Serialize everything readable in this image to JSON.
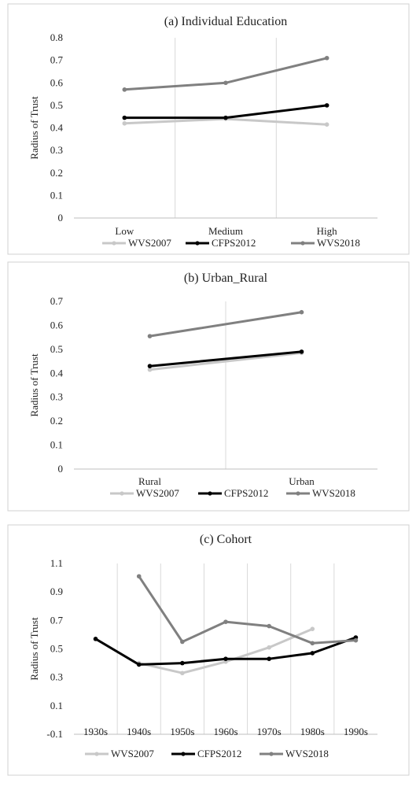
{
  "chart_data": [
    {
      "type": "line",
      "title": "(a) Individual Education",
      "ylabel": "Radius of Trust",
      "xlabel": "",
      "categories": [
        "Low",
        "Medium",
        "High"
      ],
      "ylim": [
        0,
        0.8
      ],
      "yticks": [
        0,
        0.1,
        0.2,
        0.3,
        0.4,
        0.5,
        0.6,
        0.7,
        0.8
      ],
      "ytick_labels": [
        "0",
        "0.1",
        "0.2",
        "0.3",
        "0.4",
        "0.5",
        "0.6",
        "0.7",
        "0.8"
      ],
      "grid": "vertical",
      "legend": "bottom",
      "series": [
        {
          "name": "WVS2007",
          "color": "#c8c8c8",
          "values": [
            0.42,
            0.44,
            0.415
          ]
        },
        {
          "name": "CFPS2012",
          "color": "#000000",
          "values": [
            0.445,
            0.445,
            0.5
          ]
        },
        {
          "name": "WVS2018",
          "color": "#808080",
          "values": [
            0.57,
            0.6,
            0.71
          ]
        }
      ]
    },
    {
      "type": "line",
      "title": "(b) Urban_Rural",
      "ylabel": "Radius of Trust",
      "xlabel": "",
      "categories": [
        "Rural",
        "Urban"
      ],
      "ylim": [
        0,
        0.7
      ],
      "yticks": [
        0,
        0.1,
        0.2,
        0.3,
        0.4,
        0.5,
        0.6,
        0.7
      ],
      "ytick_labels": [
        "0",
        "0.1",
        "0.2",
        "0.3",
        "0.4",
        "0.5",
        "0.6",
        "0.7"
      ],
      "grid": "vertical",
      "legend": "bottom",
      "series": [
        {
          "name": "WVS2007",
          "color": "#c8c8c8",
          "values": [
            0.415,
            0.485
          ]
        },
        {
          "name": "CFPS2012",
          "color": "#000000",
          "values": [
            0.43,
            0.49
          ]
        },
        {
          "name": "WVS2018",
          "color": "#808080",
          "values": [
            0.555,
            0.655
          ]
        }
      ]
    },
    {
      "type": "line",
      "title": "(c) Cohort",
      "ylabel": "Radius of Trust",
      "xlabel": "",
      "categories": [
        "1930s",
        "1940s",
        "1950s",
        "1960s",
        "1970s",
        "1980s",
        "1990s"
      ],
      "ylim": [
        -0.1,
        1.1
      ],
      "yticks": [
        -0.1,
        0.1,
        0.3,
        0.5,
        0.7,
        0.9,
        1.1
      ],
      "ytick_labels": [
        "-0.1",
        "0.1",
        "0.3",
        "0.5",
        "0.7",
        "0.9",
        "1.1"
      ],
      "grid": "vertical",
      "legend": "bottom",
      "series": [
        {
          "name": "WVS2007",
          "color": "#c8c8c8",
          "values": [
            null,
            0.4,
            0.33,
            0.41,
            0.51,
            0.64,
            null
          ]
        },
        {
          "name": "CFPS2012",
          "color": "#000000",
          "values": [
            0.57,
            0.39,
            0.4,
            0.43,
            0.43,
            0.47,
            0.58
          ]
        },
        {
          "name": "WVS2018",
          "color": "#808080",
          "values": [
            null,
            1.01,
            0.55,
            0.69,
            0.66,
            0.54,
            0.56
          ]
        }
      ]
    }
  ]
}
